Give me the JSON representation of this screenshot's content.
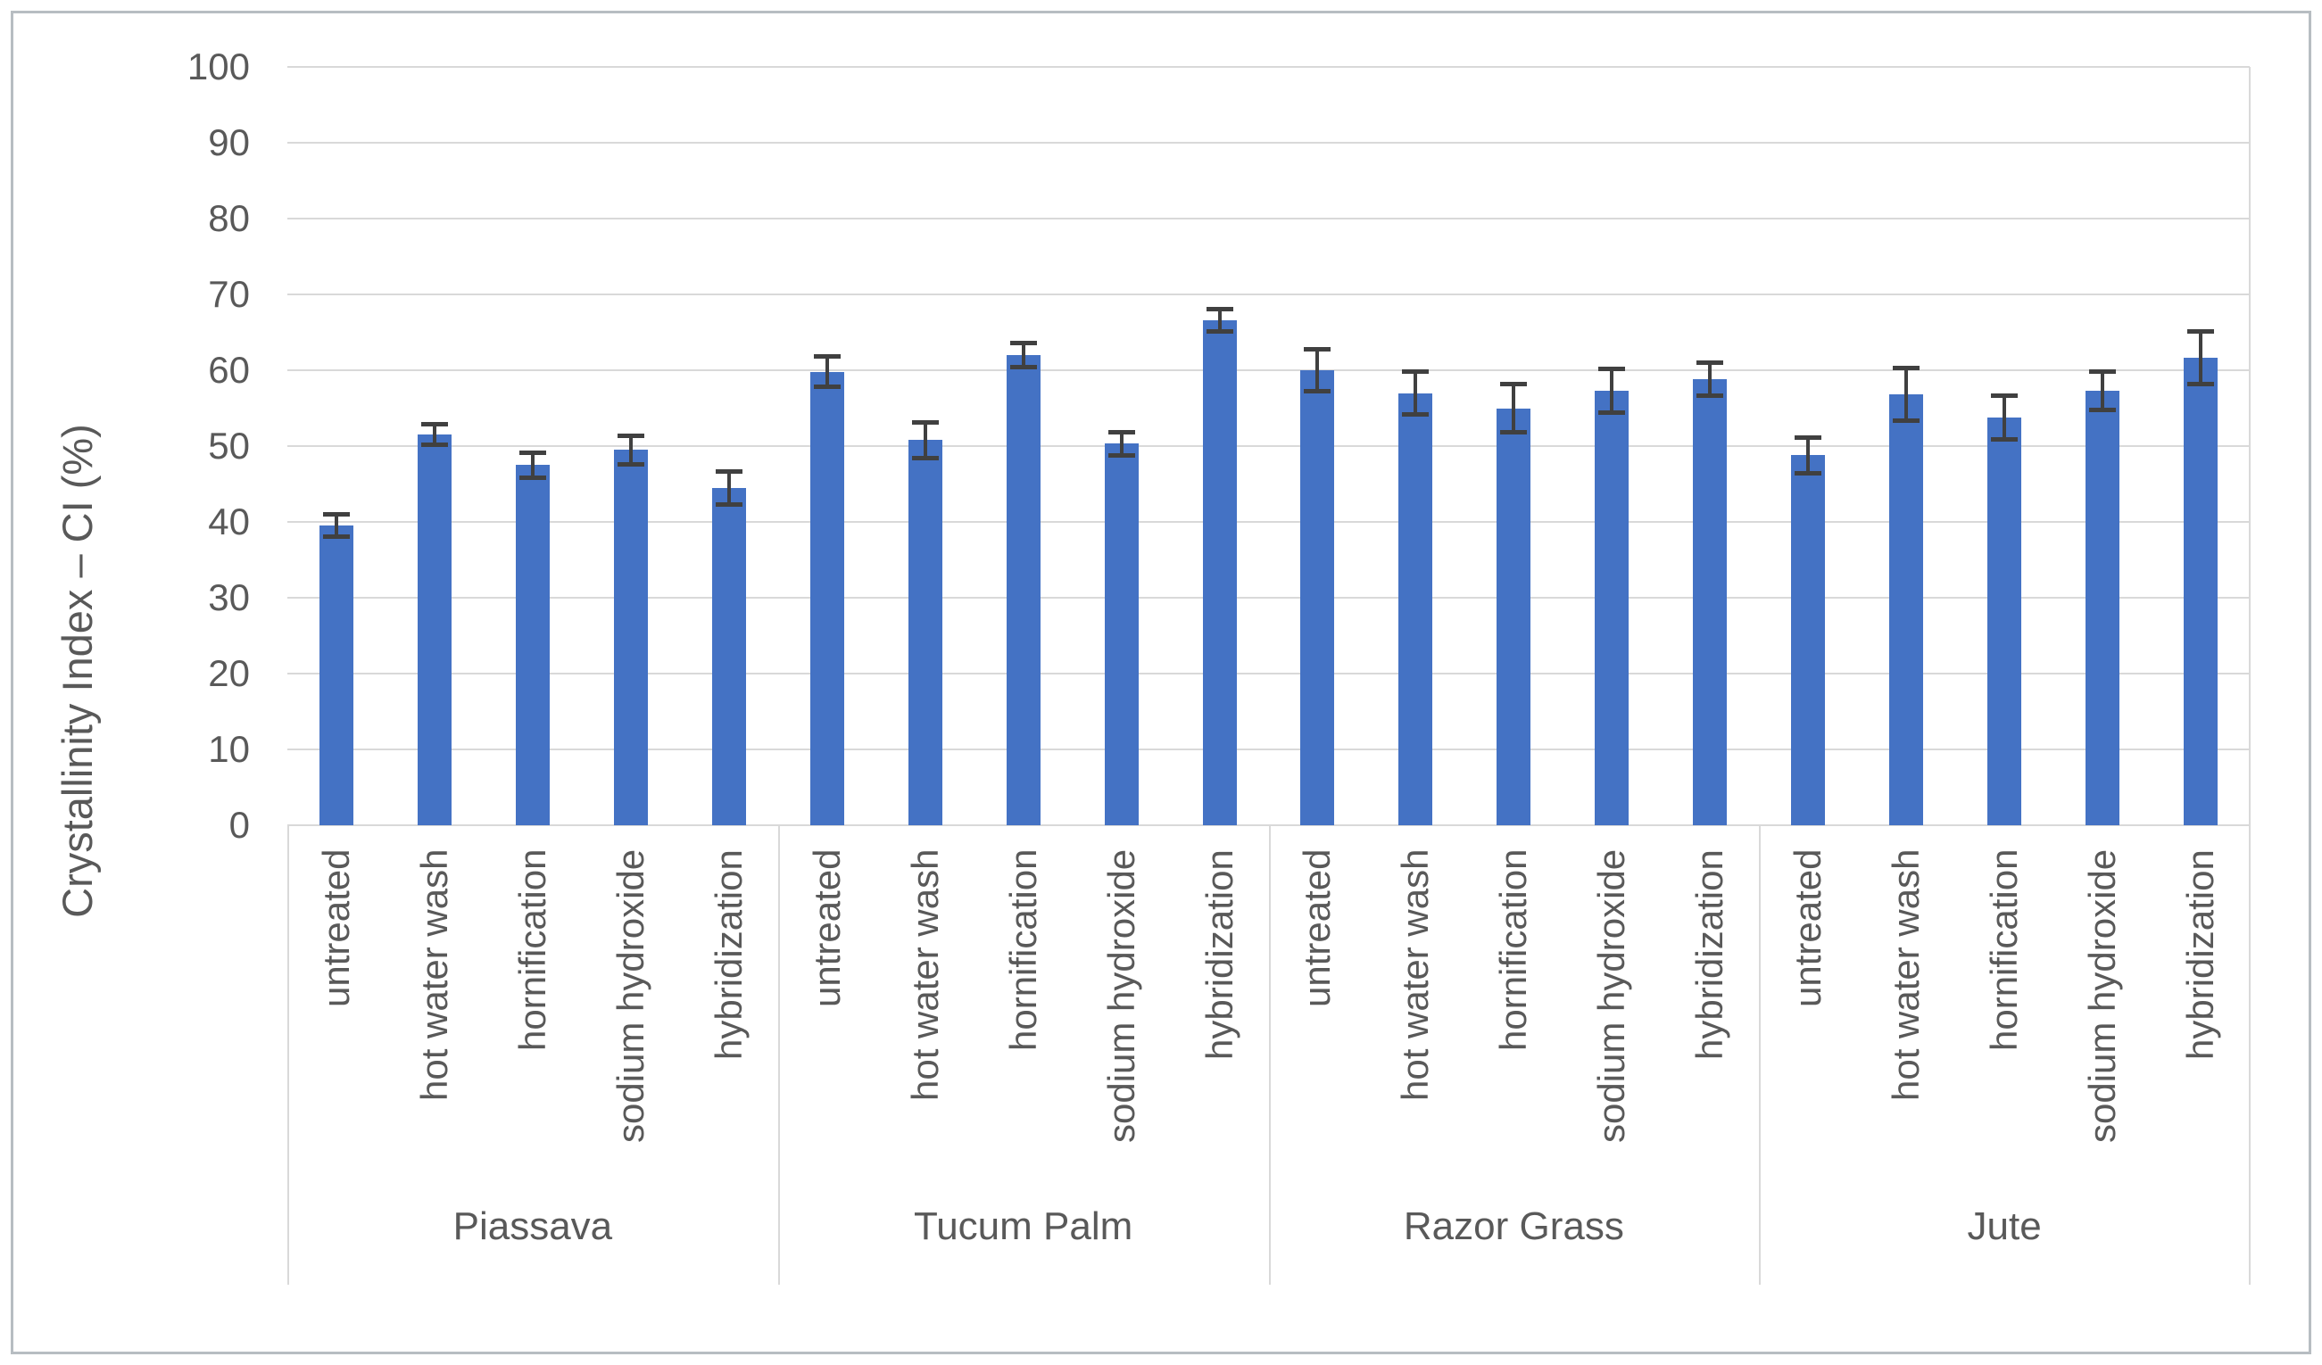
{
  "chart_data": {
    "type": "bar",
    "title": "",
    "ylabel": "Crystallinity Index – CI (%)",
    "xlabel": "",
    "ylim": [
      0,
      100
    ],
    "yticks": [
      "0",
      "10",
      "20",
      "30",
      "40",
      "50",
      "60",
      "70",
      "80",
      "90",
      "100"
    ],
    "grid": true,
    "legend_position": "none",
    "bar_color": "#4472C4",
    "error_bar_color": "#404040",
    "axis_text_color": "#595959",
    "gridline_color": "#d9d9d9",
    "categories": [
      "untreated",
      "hot water wash",
      "hornification",
      "sodium hydroxide",
      "hybridization"
    ],
    "groups": [
      {
        "label": "Piassava",
        "values": [
          39.5,
          51.5,
          47.5,
          49.5,
          44.5
        ],
        "errors": [
          1.3,
          1.2,
          1.5,
          1.7,
          2.0
        ]
      },
      {
        "label": "Tucum Palm",
        "values": [
          59.8,
          50.8,
          62.0,
          50.3,
          66.6
        ],
        "errors": [
          1.8,
          2.2,
          1.4,
          1.3,
          1.3
        ]
      },
      {
        "label": "Razor Grass",
        "values": [
          60.0,
          57.0,
          55.0,
          57.3,
          58.8
        ],
        "errors": [
          2.6,
          2.6,
          3.0,
          2.7,
          2.0
        ]
      },
      {
        "label": "Jute",
        "values": [
          48.8,
          56.8,
          53.8,
          57.3,
          61.6
        ],
        "errors": [
          2.2,
          3.3,
          2.7,
          2.4,
          3.3
        ]
      }
    ]
  }
}
